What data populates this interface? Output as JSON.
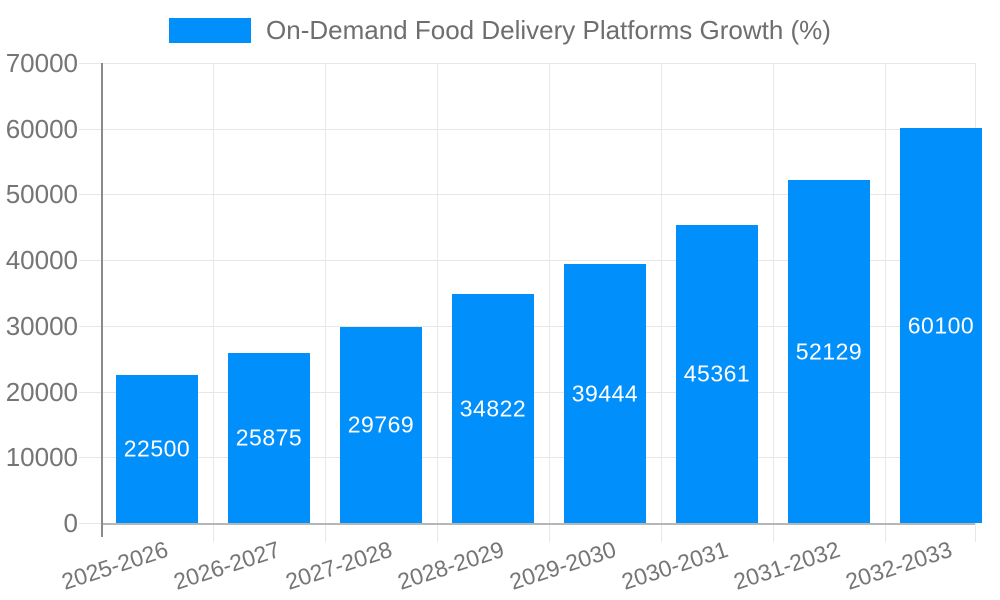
{
  "chart_data": {
    "type": "bar",
    "title": "On-Demand Food Delivery Platforms Growth (%)",
    "categories": [
      "2025-2026",
      "2026-2027",
      "2027-2028",
      "2028-2029",
      "2029-2030",
      "2030-2031",
      "2031-2032",
      "2032-2033"
    ],
    "values": [
      22500,
      25875,
      29769,
      34822,
      39444,
      45361,
      52129,
      60100
    ],
    "xlabel": "",
    "ylabel": "",
    "ylim": [
      0,
      70000
    ],
    "ytick_step": 10000,
    "ytick_labels": [
      "0",
      "10000",
      "20000",
      "30000",
      "40000",
      "50000",
      "60000",
      "70000"
    ],
    "grid": true,
    "legend_position": "top",
    "colors": {
      "bar": "#008FFB",
      "bar_label": "#FFFFFF",
      "grid_line": "#E7E7E7",
      "axis_label": "#757575",
      "legend_text": "#6E6E6E",
      "y_axis_line": "#8B8B8B",
      "x_axis_line": "#B6B6B6",
      "background": "#FFFFFF"
    }
  }
}
